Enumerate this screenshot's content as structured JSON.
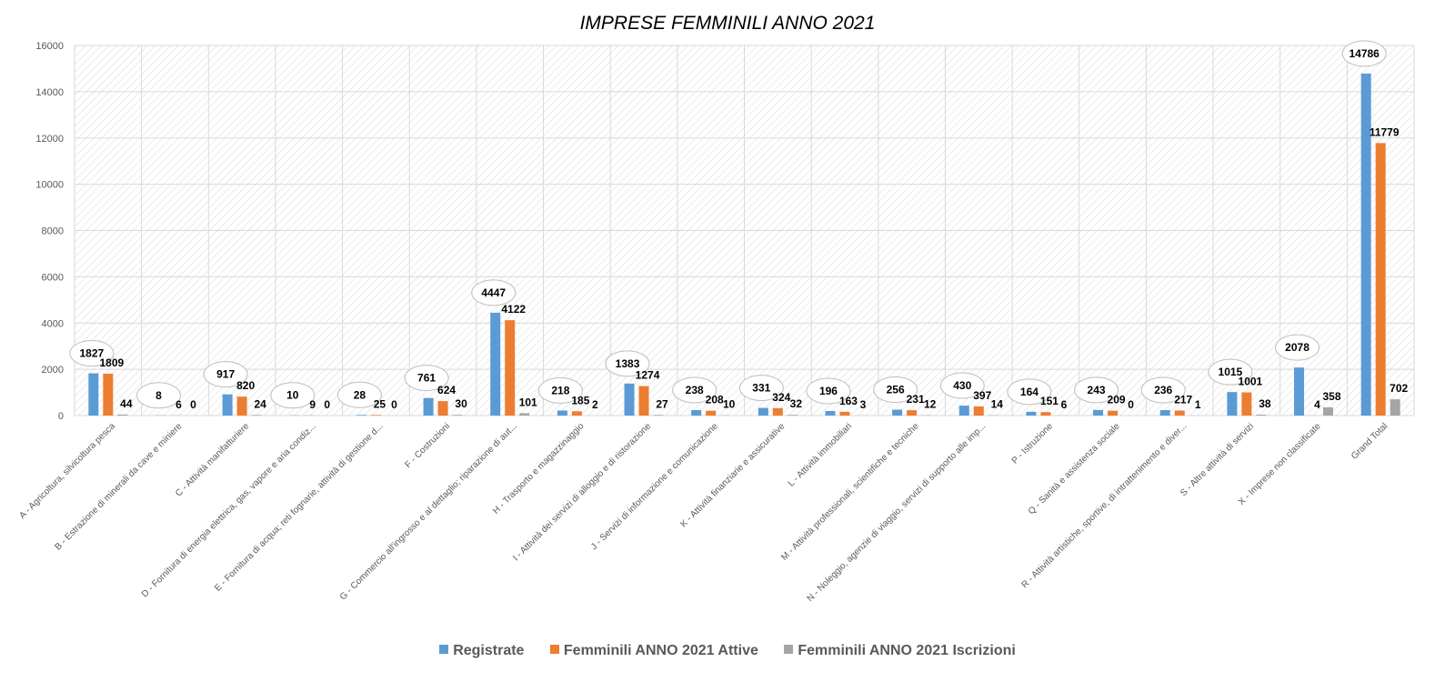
{
  "chart_data": {
    "type": "bar",
    "title": "IMPRESE FEMMINILI ANNO 2021",
    "ylim": [
      0,
      16000
    ],
    "yticks": [
      0,
      2000,
      4000,
      6000,
      8000,
      10000,
      12000,
      14000,
      16000
    ],
    "ytick_labels": [
      "0",
      "2000",
      "4000",
      "6000",
      "8000",
      "10000",
      "12000",
      "14000",
      "16000"
    ],
    "grid": true,
    "legend_position": "bottom",
    "categories": [
      "A - Agricoltura, silvicoltura pesca",
      "B - Estrazione di minerali da cave e miniere",
      "C - Attività manifatturiere",
      "D - Fornitura di energia elettrica, gas, vapore e aria condiz...",
      "E - Fornitura di acqua; reti fognarie, attività di gestione d...",
      "F - Costruzioni",
      "G - Commercio all'ingrosso e al dettaglio; riparazione di aut...",
      "H - Trasporto e magazzinaggio",
      "I - Attività dei servizi di alloggio e di ristorazione",
      "J - Servizi di informazione e comunicazione",
      "K - Attività finanziarie e assicurative",
      "L - Attività immobiliari",
      "M - Attività professionali, scientifiche e tecniche",
      "N - Noleggio, agenzie di viaggio, servizi di supporto alle imp...",
      "P - Istruzione",
      "Q - Sanità e assistenza sociale",
      "R - Attività artistiche, sportive, di intrattenimento e diver...",
      "S - Altre attività di servizi",
      "X - Imprese non classificate",
      "Grand Total"
    ],
    "series": [
      {
        "name": "Registrate",
        "color": "#5b9bd5",
        "values": [
          1827,
          8,
          917,
          10,
          28,
          761,
          4447,
          218,
          1383,
          238,
          331,
          196,
          256,
          430,
          164,
          243,
          236,
          1015,
          2078,
          14786
        ]
      },
      {
        "name": "Femminili ANNO 2021 Attive",
        "color": "#ed7d31",
        "values": [
          1809,
          6,
          820,
          9,
          25,
          624,
          4122,
          185,
          1274,
          208,
          324,
          163,
          231,
          397,
          151,
          209,
          217,
          1001,
          4,
          11779
        ]
      },
      {
        "name": "Femminili ANNO 2021 Iscrizioni",
        "color": "#a5a5a5",
        "values": [
          44,
          0,
          24,
          0,
          0,
          30,
          101,
          2,
          27,
          10,
          32,
          3,
          12,
          14,
          6,
          0,
          1,
          38,
          358,
          702
        ]
      }
    ]
  }
}
